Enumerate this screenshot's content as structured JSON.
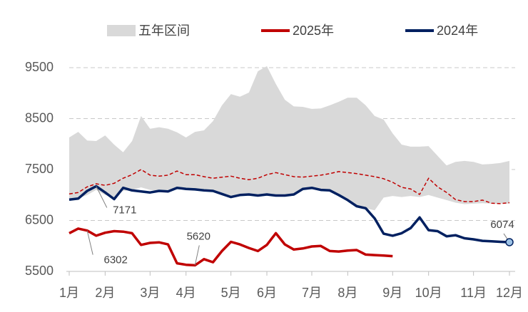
{
  "chart_data": {
    "type": "line",
    "categories": [
      "1月",
      null,
      null,
      null,
      "2月",
      null,
      null,
      null,
      null,
      "3月",
      null,
      null,
      null,
      "4月",
      null,
      null,
      null,
      null,
      "5月",
      null,
      null,
      null,
      "6月",
      null,
      null,
      null,
      null,
      "7月",
      null,
      null,
      null,
      "8月",
      null,
      null,
      null,
      null,
      "9月",
      null,
      null,
      null,
      "10月",
      null,
      null,
      null,
      null,
      "11月",
      null,
      null,
      null,
      "12月"
    ],
    "ylim": [
      5500,
      9500
    ],
    "yticks": [
      5500,
      6500,
      7500,
      8500,
      9500
    ],
    "grid": true,
    "series": [
      {
        "name": "五年区间",
        "type": "band",
        "color": "#d9d9d9",
        "upper": [
          8130,
          8240,
          8070,
          8060,
          8170,
          7990,
          7840,
          8060,
          8550,
          8300,
          8330,
          8300,
          8230,
          8130,
          8240,
          8270,
          8450,
          8760,
          8980,
          8930,
          9010,
          9430,
          9530,
          9180,
          8870,
          8740,
          8730,
          8690,
          8700,
          8760,
          8830,
          8910,
          8910,
          8760,
          8550,
          8480,
          8210,
          7990,
          7950,
          7950,
          7960,
          7770,
          7580,
          7650,
          7670,
          7650,
          7600,
          7610,
          7630,
          7670
        ],
        "lower": [
          6900,
          6930,
          7000,
          7100,
          7000,
          6950,
          7080,
          7100,
          7150,
          7100,
          7080,
          7100,
          7140,
          7120,
          7110,
          7090,
          7080,
          7020,
          6960,
          7000,
          7010,
          6990,
          7010,
          6990,
          6990,
          7010,
          7120,
          7140,
          7100,
          7090,
          7000,
          6900,
          6780,
          6740,
          6700,
          6950,
          6980,
          6960,
          6980,
          6960,
          7000,
          6950,
          6900,
          6850,
          6820,
          6830,
          6840,
          6830,
          6830,
          6830
        ]
      },
      {
        "type": "line",
        "color": "#c00000",
        "dashed": true,
        "values": [
          7020,
          7050,
          7160,
          7220,
          7190,
          7230,
          7330,
          7400,
          7500,
          7390,
          7370,
          7390,
          7470,
          7400,
          7400,
          7360,
          7330,
          7350,
          7370,
          7330,
          7300,
          7330,
          7400,
          7440,
          7400,
          7360,
          7350,
          7370,
          7390,
          7420,
          7460,
          7440,
          7420,
          7390,
          7360,
          7320,
          7250,
          7150,
          7120,
          7010,
          7330,
          7160,
          7050,
          6910,
          6870,
          6870,
          6900,
          6840,
          6830,
          6850
        ]
      },
      {
        "name": "2025年",
        "type": "line",
        "color": "#c00000",
        "values": [
          6250,
          6340,
          6302,
          6200,
          6260,
          6290,
          6280,
          6250,
          6020,
          6060,
          6070,
          6030,
          5660,
          5630,
          5620,
          5740,
          5680,
          5900,
          6080,
          6030,
          5960,
          5900,
          6020,
          6250,
          6030,
          5930,
          5950,
          5990,
          6000,
          5900,
          5890,
          5910,
          5920,
          5830,
          5820,
          5810,
          5800,
          null,
          null,
          null,
          null,
          null,
          null,
          null,
          null,
          null,
          null,
          null,
          null,
          null
        ],
        "value_labels": [
          null,
          null,
          "6302",
          null,
          null,
          null,
          null,
          null,
          null,
          null,
          null,
          null,
          null,
          null,
          "5620",
          null,
          null,
          null,
          null,
          null,
          null,
          null,
          null,
          null,
          null,
          null,
          null,
          null,
          null,
          null,
          null,
          null,
          null,
          null,
          null,
          null,
          null,
          null,
          null,
          null,
          null,
          null,
          null,
          null,
          null,
          null,
          null,
          null,
          null,
          null
        ]
      },
      {
        "name": "2024年",
        "type": "line",
        "color": "#002060",
        "values": [
          6910,
          6930,
          7080,
          7171,
          7050,
          6920,
          7140,
          7090,
          7070,
          7050,
          7080,
          7070,
          7140,
          7120,
          7110,
          7090,
          7080,
          7020,
          6960,
          7000,
          7010,
          6990,
          7010,
          6990,
          6990,
          7010,
          7120,
          7140,
          7100,
          7090,
          7000,
          6900,
          6780,
          6740,
          6540,
          6240,
          6200,
          6250,
          6350,
          6560,
          6310,
          6290,
          6190,
          6210,
          6150,
          6130,
          6100,
          6090,
          6080,
          6074
        ],
        "value_labels": [
          null,
          null,
          null,
          "7171",
          null,
          null,
          null,
          null,
          null,
          null,
          null,
          null,
          null,
          null,
          null,
          null,
          null,
          null,
          null,
          null,
          null,
          null,
          null,
          null,
          null,
          null,
          null,
          null,
          null,
          null,
          null,
          null,
          null,
          null,
          null,
          null,
          null,
          null,
          null,
          null,
          null,
          null,
          null,
          null,
          null,
          null,
          null,
          null,
          null,
          "6074"
        ]
      }
    ]
  }
}
